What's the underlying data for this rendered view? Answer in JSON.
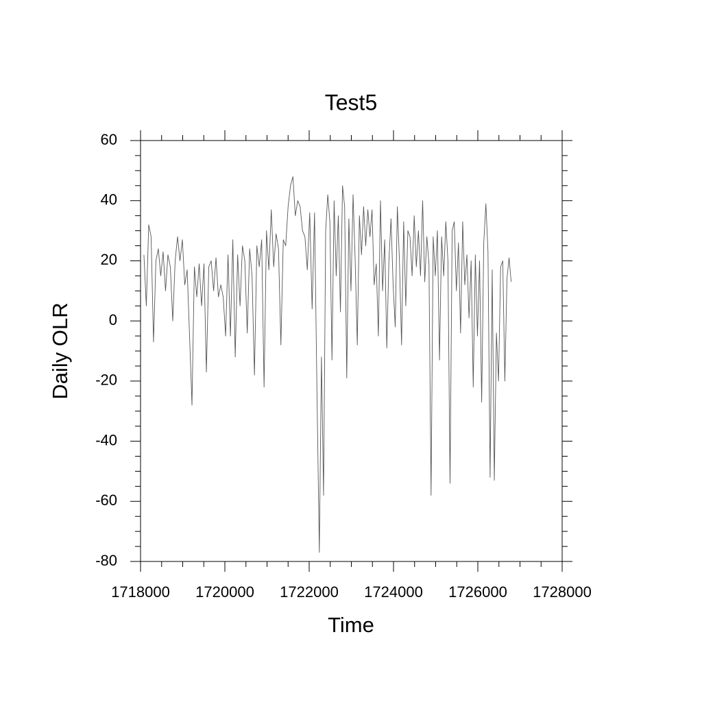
{
  "chart_data": {
    "type": "line",
    "title": "Test5",
    "x_label": "Time",
    "y_label": "Daily OLR",
    "xlim": [
      1718000,
      1728000
    ],
    "xticks": [
      1718000,
      1720000,
      1722000,
      1724000,
      1726000,
      1728000
    ],
    "ylim": [
      -80,
      60
    ],
    "yticks": [
      -80,
      -60,
      -40,
      -20,
      0,
      20,
      40,
      60
    ],
    "color": "#555555",
    "grid": false,
    "x": [
      1718080,
      1718137,
      1718194,
      1718251,
      1718308,
      1718365,
      1718422,
      1718479,
      1718536,
      1718593,
      1718650,
      1718707,
      1718764,
      1718821,
      1718878,
      1718935,
      1718992,
      1719049,
      1719106,
      1719163,
      1719220,
      1719277,
      1719334,
      1719391,
      1719448,
      1719505,
      1719562,
      1719619,
      1719676,
      1719733,
      1719790,
      1719847,
      1719904,
      1719961,
      1720018,
      1720075,
      1720132,
      1720189,
      1720246,
      1720303,
      1720360,
      1720417,
      1720474,
      1720531,
      1720588,
      1720645,
      1720702,
      1720759,
      1720816,
      1720873,
      1720930,
      1720987,
      1721044,
      1721101,
      1721158,
      1721215,
      1721272,
      1721329,
      1721386,
      1721443,
      1721500,
      1721557,
      1721614,
      1721671,
      1721728,
      1721785,
      1721842,
      1721899,
      1721956,
      1722013,
      1722070,
      1722127,
      1722184,
      1722241,
      1722291,
      1722341,
      1722391,
      1722441,
      1722491,
      1722541,
      1722591,
      1722641,
      1722691,
      1722741,
      1722791,
      1722841,
      1722891,
      1722941,
      1722991,
      1723041,
      1723091,
      1723141,
      1723191,
      1723241,
      1723291,
      1723341,
      1723391,
      1723441,
      1723491,
      1723541,
      1723591,
      1723641,
      1723691,
      1723741,
      1723791,
      1723841,
      1723891,
      1723941,
      1723991,
      1724041,
      1724091,
      1724141,
      1724191,
      1724241,
      1724291,
      1724341,
      1724391,
      1724441,
      1724491,
      1724541,
      1724591,
      1724641,
      1724691,
      1724741,
      1724791,
      1724841,
      1724891,
      1724941,
      1724991,
      1725041,
      1725091,
      1725141,
      1725191,
      1725241,
      1725291,
      1725341,
      1725391,
      1725441,
      1725491,
      1725541,
      1725591,
      1725641,
      1725691,
      1725741,
      1725791,
      1725841,
      1725891,
      1725941,
      1725991,
      1726041,
      1726091,
      1726141,
      1726191,
      1726241,
      1726291,
      1726341,
      1726391,
      1726441,
      1726491,
      1726541,
      1726591,
      1726641,
      1726691,
      1726741,
      1726791
    ],
    "values": [
      22,
      5,
      32,
      28,
      -7,
      20,
      24,
      15,
      23,
      10,
      22,
      18,
      0,
      20,
      28,
      20,
      27,
      12,
      17,
      -5,
      -28,
      18,
      8,
      19,
      5,
      19,
      -17,
      18,
      20,
      10,
      21,
      8,
      12,
      8,
      -5,
      22,
      -5,
      27,
      -12,
      22,
      5,
      25,
      20,
      -4,
      24,
      15,
      -18,
      25,
      18,
      27,
      -22,
      30,
      17,
      37,
      18,
      29,
      24,
      -8,
      27,
      25,
      38,
      45,
      48,
      35,
      40,
      38,
      30,
      28,
      17,
      36,
      4,
      36,
      -23,
      -77,
      -12,
      -58,
      30,
      42,
      33,
      -13,
      40,
      15,
      35,
      3,
      45,
      38,
      -19,
      34,
      10,
      42,
      20,
      -8,
      35,
      22,
      38,
      25,
      37,
      28,
      37,
      12,
      19,
      -5,
      40,
      10,
      27,
      -9,
      20,
      34,
      12,
      -2,
      38,
      20,
      -8,
      33,
      5,
      30,
      28,
      15,
      35,
      18,
      30,
      15,
      40,
      13,
      28,
      19,
      -58,
      28,
      15,
      30,
      -13,
      28,
      15,
      33,
      20,
      -54,
      30,
      33,
      10,
      26,
      -4,
      33,
      12,
      22,
      1,
      20,
      -22,
      22,
      -5,
      20,
      -27,
      26,
      39,
      23,
      -52,
      17,
      -53,
      -4,
      -20,
      18,
      20,
      -20,
      14,
      21,
      13
    ]
  }
}
